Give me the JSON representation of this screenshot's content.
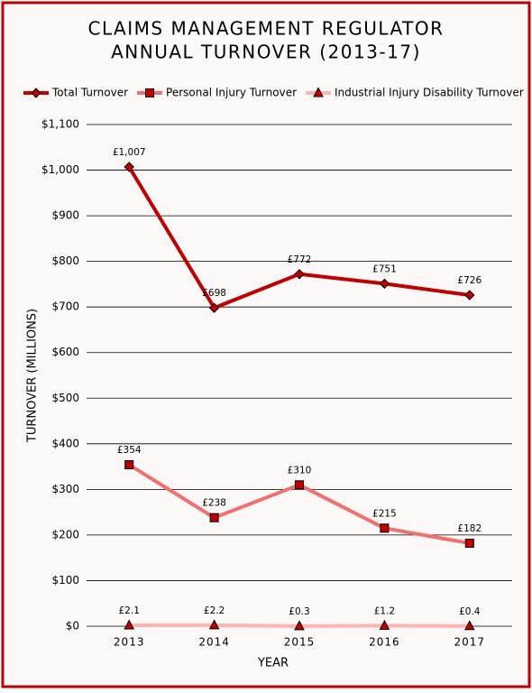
{
  "chart_data": {
    "type": "line",
    "title": [
      "CLAIMS MANAGEMENT REGULATOR",
      "ANNUAL TURNOVER (2013-17)"
    ],
    "x_label": "YEAR",
    "y_label": "TURNOVER (MILLIONS)",
    "categories": [
      "2013",
      "2014",
      "2015",
      "2016",
      "2017"
    ],
    "series": [
      {
        "name": "Total Turnover",
        "color": "#c00000",
        "marker": "diamond",
        "marker_color": "#c00000",
        "values": [
          1007,
          698,
          772,
          751,
          726
        ],
        "value_labels": [
          "£1,007",
          "£698",
          "£772",
          "£751",
          "£726"
        ]
      },
      {
        "name": "Personal Injury Turnover",
        "color": "#f07070",
        "marker": "square",
        "marker_color": "#c00000",
        "values": [
          354,
          238,
          310,
          215,
          182
        ],
        "value_labels": [
          "£354",
          "£238",
          "£310",
          "£215",
          "£182"
        ]
      },
      {
        "name": "Industrial Injury Disability Turnover",
        "color": "#ffb3b3",
        "marker": "triangle",
        "marker_color": "#c00000",
        "values": [
          2.1,
          2.2,
          0.3,
          1.2,
          0.4
        ],
        "value_labels": [
          "£2.1",
          "£2.2",
          "£0.3",
          "£1.2",
          "£0.4"
        ]
      }
    ],
    "ylim": [
      0,
      1100
    ],
    "yticks": [
      {
        "value": 0,
        "label": "$0"
      },
      {
        "value": 100,
        "label": "$100"
      },
      {
        "value": 200,
        "label": "$200"
      },
      {
        "value": 300,
        "label": "$300"
      },
      {
        "value": 400,
        "label": "$400"
      },
      {
        "value": 500,
        "label": "$500"
      },
      {
        "value": 600,
        "label": "$600"
      },
      {
        "value": 700,
        "label": "$700"
      },
      {
        "value": 800,
        "label": "$800"
      },
      {
        "value": 900,
        "label": "$900"
      },
      {
        "value": 1000,
        "label": "$1,000"
      },
      {
        "value": 1100,
        "label": "$1,100"
      }
    ],
    "grid": true,
    "legend_position": "top"
  }
}
